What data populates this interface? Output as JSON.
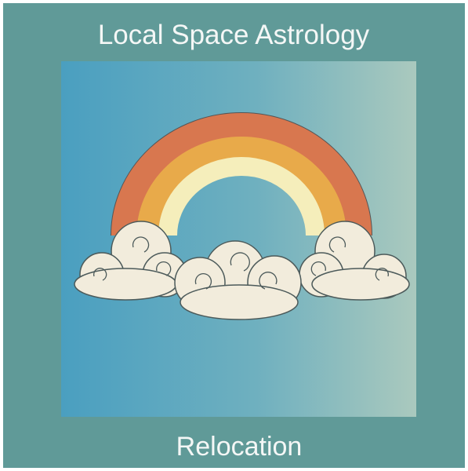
{
  "cover": {
    "title": "Local Space Astrology",
    "subtitle": "Relocation"
  }
}
